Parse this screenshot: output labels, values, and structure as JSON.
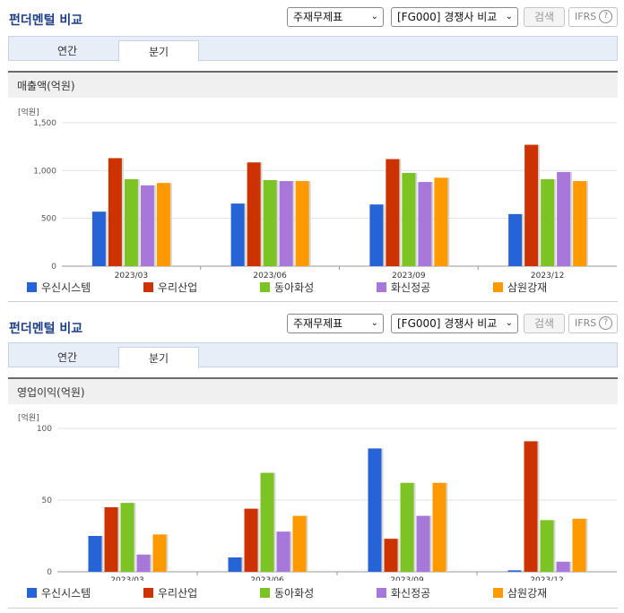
{
  "panels": [
    {
      "title": "펀더멘털 비교",
      "select1": "주재무제표",
      "select2": "[FG000] 경쟁사 비교",
      "search_btn": "검색",
      "ifrs_label": "IFRS",
      "ifrs_help": "?",
      "tabs": [
        "연간",
        "분기"
      ],
      "active_tab": 1,
      "section_title": "매출액(억원)",
      "unit": "[억원]"
    },
    {
      "title": "펀더멘털 비교",
      "select1": "주재무제표",
      "select2": "[FG000] 경쟁사 비교",
      "search_btn": "검색",
      "ifrs_label": "IFRS",
      "ifrs_help": "?",
      "tabs": [
        "연간",
        "분기"
      ],
      "active_tab": 1,
      "section_title": "영업이익(억원)",
      "unit": "[억원]"
    }
  ],
  "legend": [
    {
      "name": "우신시스템",
      "color": "#2563d6"
    },
    {
      "name": "우리산업",
      "color": "#cc3300"
    },
    {
      "name": "동아화성",
      "color": "#7bc423"
    },
    {
      "name": "화신정공",
      "color": "#a777d9"
    },
    {
      "name": "삼원강재",
      "color": "#ff9900"
    }
  ],
  "chart_data": [
    {
      "type": "bar",
      "categories": [
        "2023/03",
        "2023/06",
        "2023/09",
        "2023/12"
      ],
      "ylabel": "[억원]",
      "ylim": [
        0,
        1500
      ],
      "yticks": [
        "0",
        "500",
        "1,000",
        "1,500"
      ],
      "ytick_values": [
        0,
        500,
        1000,
        1500
      ],
      "series": [
        {
          "name": "우신시스템",
          "values": [
            570,
            655,
            645,
            545
          ]
        },
        {
          "name": "우리산업",
          "values": [
            1130,
            1085,
            1120,
            1270
          ]
        },
        {
          "name": "동아화성",
          "values": [
            910,
            900,
            975,
            910
          ]
        },
        {
          "name": "화신정공",
          "values": [
            845,
            890,
            880,
            985
          ]
        },
        {
          "name": "삼원강재",
          "values": [
            870,
            890,
            925,
            890
          ]
        }
      ]
    },
    {
      "type": "bar",
      "categories": [
        "2023/03",
        "2023/06",
        "2023/09",
        "2023/12"
      ],
      "ylabel": "[억원]",
      "ylim": [
        0,
        100
      ],
      "yticks": [
        "0",
        "50",
        "100"
      ],
      "ytick_values": [
        0,
        50,
        100
      ],
      "series": [
        {
          "name": "우신시스템",
          "values": [
            25,
            10,
            86,
            1
          ]
        },
        {
          "name": "우리산업",
          "values": [
            45,
            44,
            23,
            91
          ]
        },
        {
          "name": "동아화성",
          "values": [
            48,
            69,
            62,
            36
          ]
        },
        {
          "name": "화신정공",
          "values": [
            12,
            28,
            39,
            7
          ]
        },
        {
          "name": "삼원강재",
          "values": [
            26,
            39,
            62,
            37
          ]
        }
      ]
    }
  ]
}
